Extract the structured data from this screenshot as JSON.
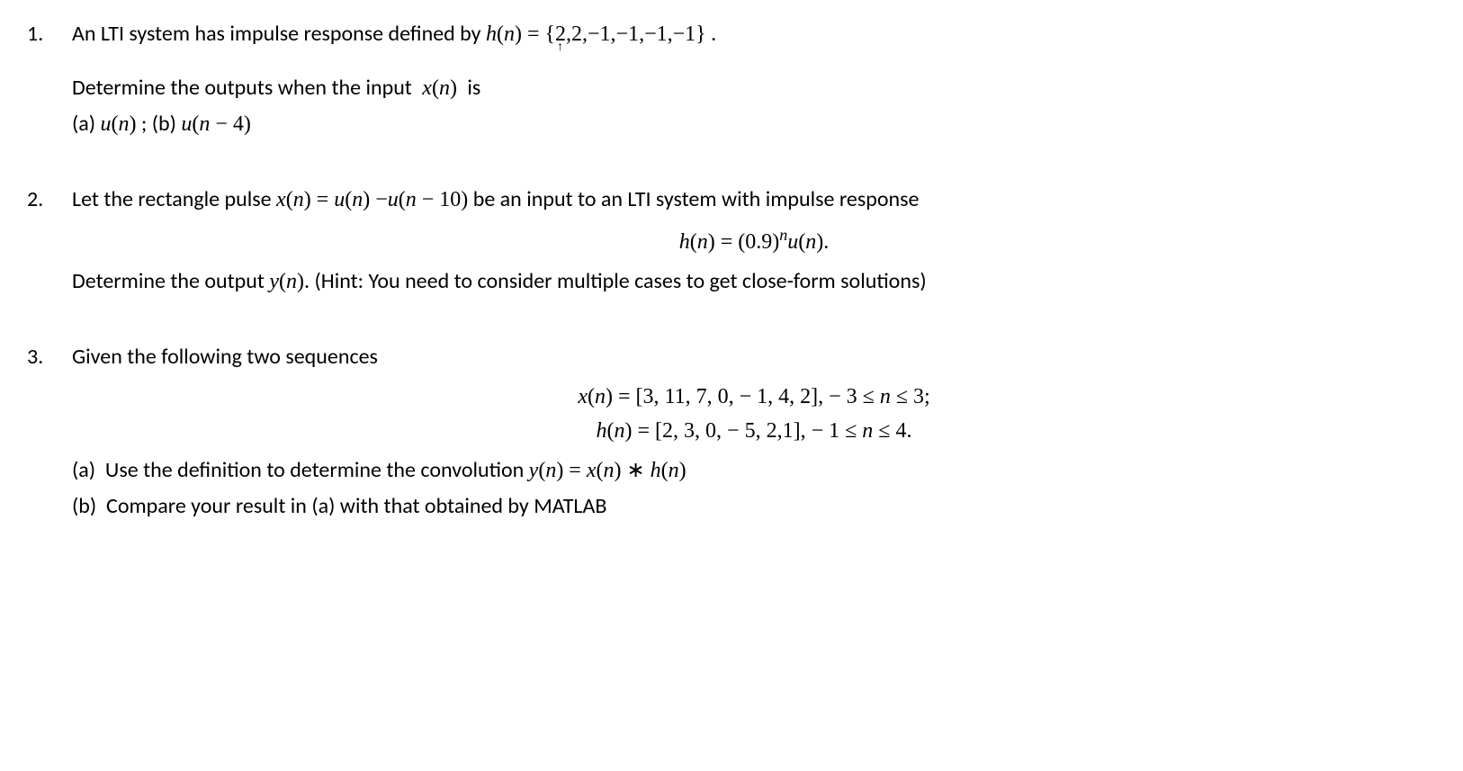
{
  "problems": [
    {
      "number": "1.",
      "line1_prefix": "An LTI system has impulse response defined by ",
      "line1_math": "h(n) = {2,2,−1,−1,−1,−1}",
      "line1_suffix": " .",
      "line2": "Determine the outputs when the input ",
      "line2_math_xn": "x(n)",
      "line2_suffix": " is",
      "line3_a": "(a) ",
      "line3_a_math": "u(n)",
      "line3_sep": " ; (b) ",
      "line3_b_math": "u(n − 4)"
    },
    {
      "number": "2.",
      "line1_prefix": "Let the rectangle pulse ",
      "line1_math": "x(n) = u(n) −u(n − 10)",
      "line1_suffix": " be an input to an LTI system with impulse response",
      "eq_center": "h(n) = (0.9)ⁿu(n).",
      "line2_prefix": "Determine the output ",
      "line2_math": "y(n)",
      "line2_suffix": ". (Hint: You need to consider multiple cases to get close-form solutions)"
    },
    {
      "number": "3.",
      "line1": "Given the following two sequences",
      "eq1_lhs": "x(n) = [3, 11, 7, 0, − 1, 4, 2], ",
      "eq1_rhs": "− 3 ≤ n ≤ 3;",
      "eq2_lhs": "h(n) = [2, 3, 0, − 5, 2,1], ",
      "eq2_rhs": "− 1 ≤ n ≤ 4.",
      "part_a_label": "(a)",
      "part_a_text": "Use the definition to determine the convolution ",
      "part_a_math": "y(n) = x(n) ∗ h(n)",
      "part_b_label": "(b)",
      "part_b_text": "Compare your result in (a) with that obtained by MATLAB"
    }
  ]
}
